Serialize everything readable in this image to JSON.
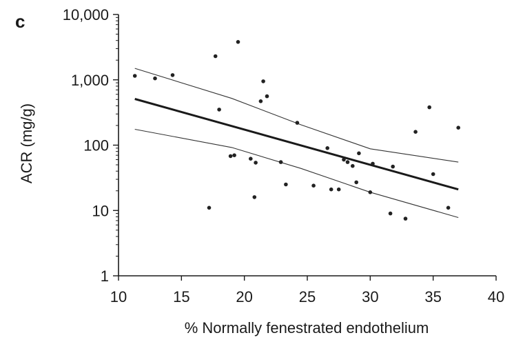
{
  "chart_data": {
    "type": "scatter",
    "panel_label": "c",
    "xlabel": "% Normally fenestrated endothelium",
    "ylabel": "ACR (mg/g)",
    "xlim": [
      10,
      40
    ],
    "ylim": [
      1,
      10000
    ],
    "y_scale": "log",
    "x_ticks": [
      10,
      15,
      20,
      25,
      30,
      35,
      40
    ],
    "x_tick_labels": [
      "10",
      "15",
      "20",
      "25",
      "30",
      "35",
      "40"
    ],
    "y_ticks": [
      1,
      10,
      100,
      1000,
      10000
    ],
    "y_tick_labels": [
      "1",
      "10",
      "100",
      "1,000",
      "10,000"
    ],
    "grid": false,
    "colors": {
      "points": "#222222",
      "fit": "#1a1a1a",
      "ci": "#333333",
      "axis": "#1a1a1a"
    },
    "points": [
      {
        "x": 11.3,
        "y": 1150
      },
      {
        "x": 12.9,
        "y": 1050
      },
      {
        "x": 14.3,
        "y": 1180
      },
      {
        "x": 17.2,
        "y": 11
      },
      {
        "x": 17.7,
        "y": 2300
      },
      {
        "x": 18.0,
        "y": 350
      },
      {
        "x": 18.9,
        "y": 68
      },
      {
        "x": 19.2,
        "y": 70
      },
      {
        "x": 19.5,
        "y": 3800
      },
      {
        "x": 20.5,
        "y": 62
      },
      {
        "x": 20.8,
        "y": 16
      },
      {
        "x": 20.9,
        "y": 54
      },
      {
        "x": 21.3,
        "y": 470
      },
      {
        "x": 21.5,
        "y": 950
      },
      {
        "x": 21.8,
        "y": 560
      },
      {
        "x": 22.9,
        "y": 55
      },
      {
        "x": 23.3,
        "y": 25
      },
      {
        "x": 24.2,
        "y": 220
      },
      {
        "x": 25.5,
        "y": 24
      },
      {
        "x": 26.6,
        "y": 90
      },
      {
        "x": 26.9,
        "y": 21
      },
      {
        "x": 27.5,
        "y": 21
      },
      {
        "x": 27.9,
        "y": 60
      },
      {
        "x": 28.2,
        "y": 55
      },
      {
        "x": 28.6,
        "y": 48
      },
      {
        "x": 28.9,
        "y": 27
      },
      {
        "x": 29.1,
        "y": 75
      },
      {
        "x": 30.0,
        "y": 19
      },
      {
        "x": 30.2,
        "y": 52
      },
      {
        "x": 31.6,
        "y": 9
      },
      {
        "x": 31.8,
        "y": 47
      },
      {
        "x": 32.8,
        "y": 7.5
      },
      {
        "x": 33.6,
        "y": 160
      },
      {
        "x": 34.7,
        "y": 380
      },
      {
        "x": 35.0,
        "y": 36
      },
      {
        "x": 36.2,
        "y": 11
      },
      {
        "x": 37.0,
        "y": 185
      }
    ],
    "series": [
      {
        "role": "regression",
        "x": [
          11.3,
          37.0
        ],
        "y": [
          510,
          21
        ]
      },
      {
        "role": "upper-ci",
        "x": [
          11.3,
          19.0,
          24.5,
          30.0,
          37.0
        ],
        "y": [
          1500,
          520,
          205,
          88,
          55
        ]
      },
      {
        "role": "lower-ci",
        "x": [
          11.3,
          19.0,
          24.5,
          30.0,
          37.0
        ],
        "y": [
          175,
          92,
          44,
          19,
          7.8
        ]
      }
    ]
  }
}
